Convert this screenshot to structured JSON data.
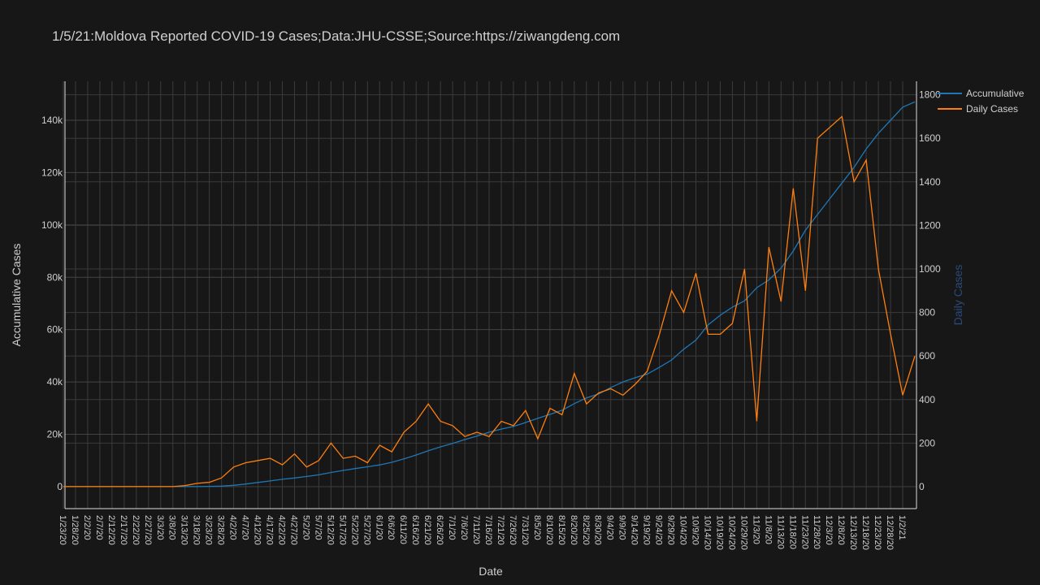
{
  "chart_data": {
    "type": "line",
    "title": "1/5/21:Moldova Reported COVID-19 Cases;Data:JHU-CSSE;Source:https://ziwangdeng.com",
    "x_label": "Date",
    "y_label": "Accumulative Cases",
    "y2_label": "Daily Cases",
    "categories": [
      "1/23/20",
      "1/28/20",
      "2/2/20",
      "2/7/20",
      "2/12/20",
      "2/17/20",
      "2/22/20",
      "2/27/20",
      "3/3/20",
      "3/8/20",
      "3/13/20",
      "3/18/20",
      "3/23/20",
      "3/28/20",
      "4/2/20",
      "4/7/20",
      "4/12/20",
      "4/17/20",
      "4/22/20",
      "4/27/20",
      "5/2/20",
      "5/7/20",
      "5/12/20",
      "5/17/20",
      "5/22/20",
      "5/27/20",
      "6/1/20",
      "6/6/20",
      "6/11/20",
      "6/16/20",
      "6/21/20",
      "6/26/20",
      "7/1/20",
      "7/6/20",
      "7/11/20",
      "7/16/20",
      "7/21/20",
      "7/26/20",
      "7/31/20",
      "8/5/20",
      "8/10/20",
      "8/15/20",
      "8/20/20",
      "8/25/20",
      "8/30/20",
      "9/4/20",
      "9/9/20",
      "9/14/20",
      "9/19/20",
      "9/24/20",
      "9/29/20",
      "10/4/20",
      "10/9/20",
      "10/14/20",
      "10/19/20",
      "10/24/20",
      "10/29/20",
      "11/3/20",
      "11/8/20",
      "11/13/20",
      "11/18/20",
      "11/23/20",
      "11/28/20",
      "12/3/20",
      "12/8/20",
      "12/13/20",
      "12/18/20",
      "12/23/20",
      "12/28/20",
      "1/2/21",
      null
    ],
    "series": [
      {
        "name": "Accumulative",
        "color": "#1f77b4",
        "values": [
          0,
          0,
          0,
          0,
          0,
          0,
          0,
          0,
          0,
          0,
          0,
          30,
          100,
          200,
          500,
          1000,
          1600,
          2200,
          2800,
          3300,
          3900,
          4500,
          5400,
          6200,
          6900,
          7600,
          8300,
          9300,
          10600,
          12100,
          13700,
          15200,
          16500,
          18000,
          19300,
          20800,
          22000,
          23000,
          24500,
          26100,
          27600,
          29200,
          31700,
          33900,
          35400,
          37900,
          40000,
          41600,
          43000,
          45600,
          48400,
          52500,
          56000,
          61800,
          65500,
          68600,
          71000,
          76000,
          79000,
          83500,
          90000,
          98000,
          104000,
          110000,
          116000,
          122000,
          129000,
          135000,
          140000,
          145000,
          147000
        ]
      },
      {
        "name": "Daily Cases",
        "color": "#ff7f0e",
        "axis": "y2",
        "values": [
          0,
          0,
          0,
          0,
          0,
          0,
          0,
          0,
          0,
          0,
          5,
          15,
          20,
          40,
          90,
          110,
          120,
          130,
          100,
          150,
          90,
          120,
          200,
          130,
          140,
          110,
          190,
          160,
          250,
          300,
          380,
          300,
          280,
          230,
          250,
          230,
          300,
          280,
          350,
          220,
          360,
          330,
          520,
          380,
          430,
          450,
          420,
          470,
          530,
          700,
          900,
          800,
          980,
          700,
          700,
          750,
          1000,
          300,
          1100,
          850,
          1370,
          900,
          1600,
          1650,
          1700,
          1400,
          1500,
          1000,
          700,
          420,
          600
        ]
      }
    ],
    "ylim": [
      -8400,
      154900
    ],
    "yticks": [
      {
        "value": 0,
        "label": "0"
      },
      {
        "value": 20000,
        "label": "20k"
      },
      {
        "value": 40000,
        "label": "40k"
      },
      {
        "value": 60000,
        "label": "60k"
      },
      {
        "value": 80000,
        "label": "80k"
      },
      {
        "value": 100000,
        "label": "100k"
      },
      {
        "value": 120000,
        "label": "120k"
      },
      {
        "value": 140000,
        "label": "140k"
      }
    ],
    "y2lim": [
      -101,
      1862
    ],
    "y2ticks": [
      0,
      200,
      400,
      600,
      800,
      1000,
      1200,
      1400,
      1600,
      1800
    ],
    "grid": true,
    "legend": "top-right"
  }
}
